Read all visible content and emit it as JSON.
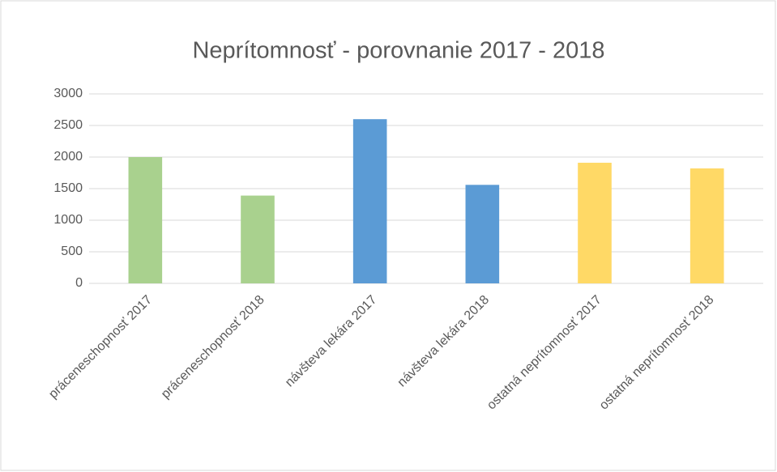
{
  "chart_data": {
    "type": "bar",
    "title": "Neprítomnosť - porovnanie 2017 - 2018",
    "categories": [
      "práceneschopnosť 2017",
      "práceneschopnosť 2018",
      "návšteva lekára 2017",
      "návšteva lekára 2018",
      "ostatná neprítomnosť 2017",
      "ostatná neprítomnosť 2018"
    ],
    "values": [
      2000,
      1390,
      2600,
      1560,
      1910,
      1820
    ],
    "colors": [
      "#a9d18e",
      "#a9d18e",
      "#5b9bd5",
      "#5b9bd5",
      "#ffd966",
      "#ffd966"
    ],
    "ylim": [
      0,
      3000
    ],
    "yticks": [
      0,
      500,
      1000,
      1500,
      2000,
      2500,
      3000
    ],
    "grid": true
  }
}
